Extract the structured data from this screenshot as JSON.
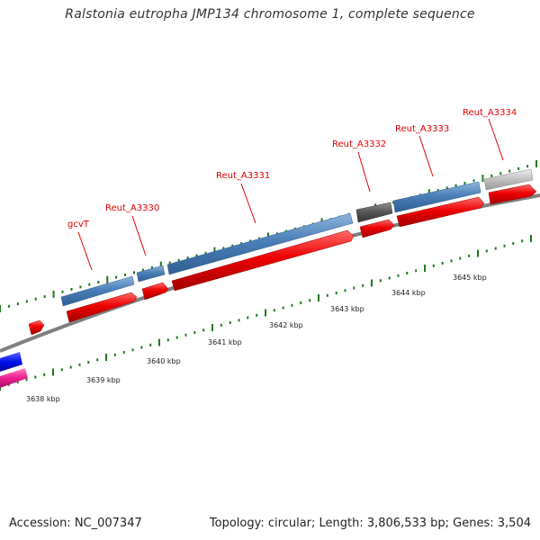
{
  "title": "Ralstonia eutropha JMP134 chromosome 1, complete sequence",
  "footer": {
    "accession": "Accession: NC_007347",
    "summary": "Topology: circular; Length: 3,806,533 bp; Genes: 3,504"
  },
  "colors": {
    "backbone": "#808080",
    "cds_blue": "#4a7fb8",
    "gene_red": "#ee0000",
    "tick_green": "#207820",
    "dark_gray_feature": "#555555",
    "light_gray_feature": "#c0c0c0",
    "strong_blue": "#0010ee",
    "magenta": "#ee2090"
  },
  "scale_labels": [
    "3638 kbp",
    "3639 kbp",
    "3640 kbp",
    "3641 kbp",
    "3642 kbp",
    "3643 kbp",
    "3644 kbp",
    "3645 kbp"
  ],
  "gene_labels": [
    "gcvT",
    "Reut_A3330",
    "Reut_A3331",
    "Reut_A3332",
    "Reut_A3333",
    "Reut_A3334"
  ]
}
